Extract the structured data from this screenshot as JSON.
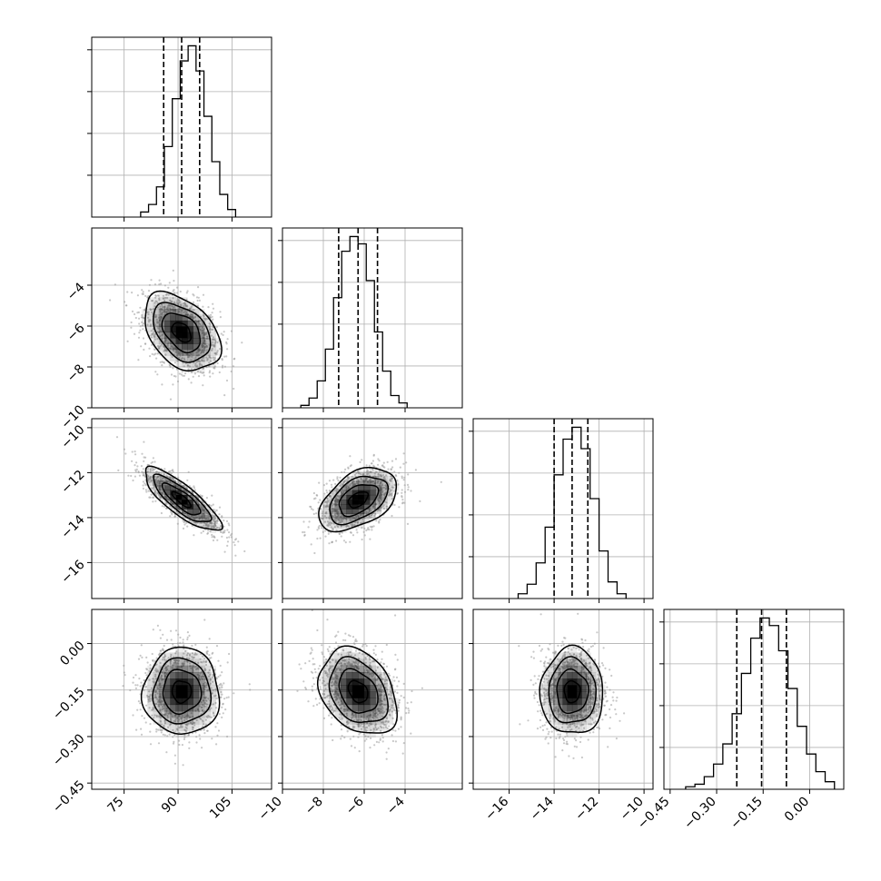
{
  "chart_data": {
    "type": "corner",
    "parameters": [
      {
        "range": [
          66,
          116
        ],
        "ticks": [
          75,
          90,
          105
        ],
        "tick_labels": [
          "75",
          "90",
          "105"
        ],
        "mean": 91.0,
        "sd": 5.3,
        "quantiles": [
          86.0,
          91.0,
          96.0
        ]
      },
      {
        "range": [
          -10,
          -1.2
        ],
        "ticks": [
          -10,
          -8,
          -6,
          -4
        ],
        "tick_labels": [
          "−10",
          "−8",
          "−6",
          "−4"
        ],
        "mean": -6.3,
        "sd": 0.95,
        "quantiles": [
          -7.25,
          -6.3,
          -5.35
        ]
      },
      {
        "range": [
          -17.6,
          -9.6
        ],
        "ticks": [
          -16,
          -14,
          -12,
          -10
        ],
        "tick_labels": [
          "−16",
          "−14",
          "−12",
          "−10"
        ],
        "mean": -13.2,
        "sd": 0.7,
        "quantiles": [
          -14.0,
          -13.2,
          -12.5
        ]
      },
      {
        "range": [
          -0.47,
          0.11
        ],
        "ticks": [
          -0.45,
          -0.3,
          -0.15,
          0.0
        ],
        "tick_labels": [
          "−0.45",
          "−0.30",
          "−0.15",
          "0.00"
        ],
        "mean": -0.155,
        "sd": 0.07,
        "quantiles": [
          -0.235,
          -0.155,
          -0.075
        ]
      }
    ],
    "histograms": [
      {
        "param": 0,
        "bins": [
          79.6,
          81.8,
          84.0,
          86.2,
          88.4,
          90.6,
          92.8,
          95.0,
          97.2,
          99.4,
          101.6,
          103.8,
          106.0
        ],
        "counts": [
          2,
          5,
          12,
          28,
          47,
          62,
          68,
          58,
          40,
          22,
          9,
          3
        ]
      },
      {
        "param": 1,
        "bins": [
          -9.1,
          -8.7,
          -8.3,
          -7.9,
          -7.5,
          -7.1,
          -6.7,
          -6.3,
          -5.9,
          -5.5,
          -5.1,
          -4.7,
          -4.3,
          -3.9
        ],
        "counts": [
          1,
          4,
          11,
          24,
          45,
          64,
          70,
          67,
          52,
          31,
          15,
          5,
          2
        ]
      },
      {
        "param": 2,
        "bins": [
          -15.6,
          -15.2,
          -14.8,
          -14.4,
          -14.0,
          -13.6,
          -13.2,
          -12.8,
          -12.4,
          -12.0,
          -11.6,
          -11.2,
          -10.8
        ],
        "counts": [
          2,
          6,
          15,
          30,
          52,
          67,
          72,
          63,
          42,
          20,
          7,
          2
        ]
      },
      {
        "param": 3,
        "bins": [
          -0.4,
          -0.37,
          -0.34,
          -0.31,
          -0.28,
          -0.25,
          -0.22,
          -0.19,
          -0.16,
          -0.13,
          -0.1,
          -0.07,
          -0.04,
          -0.01,
          0.02,
          0.05,
          0.08
        ],
        "counts": [
          1,
          2,
          5,
          10,
          18,
          30,
          46,
          60,
          68,
          65,
          55,
          40,
          25,
          14,
          7,
          3
        ]
      }
    ],
    "correlations": {
      "1-0": -0.4,
      "2-0": -0.82,
      "2-1": 0.45,
      "3-0": 0.0,
      "3-1": -0.3,
      "3-2": 0.0
    },
    "contour_levels_sigma": [
      0.5,
      1.0,
      1.5,
      2.0
    ],
    "scatter_points_per_panel": 1300,
    "colors": {
      "scatter": "#9a9a9a",
      "density": "#000000",
      "grid": "#b0b0b0",
      "line": "#000000"
    },
    "grid": true
  }
}
